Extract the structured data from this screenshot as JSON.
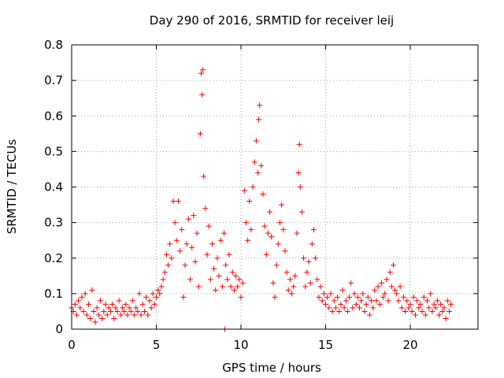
{
  "chart_data": {
    "type": "scatter",
    "title": "Day 290 of 2016, SRMTID for receiver leij",
    "xlabel": "GPS time / hours",
    "ylabel": "SRMTID / TECUs",
    "xlim": [
      0,
      24
    ],
    "ylim": [
      0,
      0.8
    ],
    "xticks": [
      0,
      5,
      10,
      15,
      20
    ],
    "xtick_labels": [
      "0",
      "5",
      "10",
      "15",
      "20"
    ],
    "yticks": [
      0,
      0.1,
      0.2,
      0.3,
      0.4,
      0.5,
      0.6,
      0.7,
      0.8
    ],
    "ytick_labels": [
      "0",
      "0.1",
      "0.2",
      "0.3",
      "0.4",
      "0.5",
      "0.6",
      "0.7",
      "0.8"
    ],
    "grid": true,
    "marker": "+",
    "color": "#ff0000",
    "series": [
      {
        "points": [
          [
            0.0,
            0.06
          ],
          [
            0.1,
            0.05
          ],
          [
            0.2,
            0.07
          ],
          [
            0.3,
            0.04
          ],
          [
            0.4,
            0.08
          ],
          [
            0.5,
            0.06
          ],
          [
            0.6,
            0.09
          ],
          [
            0.7,
            0.05
          ],
          [
            0.8,
            0.1
          ],
          [
            0.9,
            0.04
          ],
          [
            1.0,
            0.07
          ],
          [
            1.1,
            0.03
          ],
          [
            1.2,
            0.11
          ],
          [
            1.3,
            0.05
          ],
          [
            1.4,
            0.02
          ],
          [
            1.5,
            0.06
          ],
          [
            1.6,
            0.04
          ],
          [
            1.7,
            0.08
          ],
          [
            1.8,
            0.03
          ],
          [
            1.9,
            0.05
          ],
          [
            2.0,
            0.07
          ],
          [
            2.1,
            0.04
          ],
          [
            2.2,
            0.06
          ],
          [
            2.3,
            0.05
          ],
          [
            2.4,
            0.07
          ],
          [
            2.5,
            0.03
          ],
          [
            2.6,
            0.06
          ],
          [
            2.7,
            0.05
          ],
          [
            2.8,
            0.08
          ],
          [
            2.9,
            0.04
          ],
          [
            3.0,
            0.06
          ],
          [
            3.1,
            0.05
          ],
          [
            3.2,
            0.07
          ],
          [
            3.3,
            0.04
          ],
          [
            3.4,
            0.06
          ],
          [
            3.5,
            0.05
          ],
          [
            3.6,
            0.08
          ],
          [
            3.7,
            0.04
          ],
          [
            3.8,
            0.06
          ],
          [
            3.9,
            0.05
          ],
          [
            4.0,
            0.1
          ],
          [
            4.1,
            0.04
          ],
          [
            4.2,
            0.07
          ],
          [
            4.3,
            0.05
          ],
          [
            4.4,
            0.09
          ],
          [
            4.5,
            0.04
          ],
          [
            4.6,
            0.08
          ],
          [
            4.7,
            0.06
          ],
          [
            4.8,
            0.1
          ],
          [
            4.9,
            0.07
          ],
          [
            5.0,
            0.09
          ],
          [
            5.1,
            0.11
          ],
          [
            5.2,
            0.1
          ],
          [
            5.3,
            0.12
          ],
          [
            5.4,
            0.14
          ],
          [
            5.5,
            0.16
          ],
          [
            5.6,
            0.21
          ],
          [
            5.7,
            0.18
          ],
          [
            5.8,
            0.24
          ],
          [
            5.9,
            0.2
          ],
          [
            6.0,
            0.36
          ],
          [
            6.1,
            0.3
          ],
          [
            6.2,
            0.25
          ],
          [
            6.3,
            0.36
          ],
          [
            6.4,
            0.22
          ],
          [
            6.5,
            0.28
          ],
          [
            6.6,
            0.09
          ],
          [
            6.7,
            0.18
          ],
          [
            6.8,
            0.24
          ],
          [
            6.9,
            0.31
          ],
          [
            7.0,
            0.14
          ],
          [
            7.1,
            0.23
          ],
          [
            7.2,
            0.32
          ],
          [
            7.3,
            0.19
          ],
          [
            7.4,
            0.27
          ],
          [
            7.5,
            0.12
          ],
          [
            7.6,
            0.55
          ],
          [
            7.65,
            0.72
          ],
          [
            7.7,
            0.66
          ],
          [
            7.75,
            0.73
          ],
          [
            7.8,
            0.43
          ],
          [
            7.9,
            0.34
          ],
          [
            8.0,
            0.21
          ],
          [
            8.1,
            0.29
          ],
          [
            8.2,
            0.14
          ],
          [
            8.3,
            0.24
          ],
          [
            8.4,
            0.17
          ],
          [
            8.5,
            0.11
          ],
          [
            8.6,
            0.2
          ],
          [
            8.7,
            0.15
          ],
          [
            8.8,
            0.25
          ],
          [
            8.9,
            0.12
          ],
          [
            9.0,
            0.27
          ],
          [
            9.05,
            0.0
          ],
          [
            9.1,
            0.18
          ],
          [
            9.2,
            0.14
          ],
          [
            9.3,
            0.21
          ],
          [
            9.4,
            0.12
          ],
          [
            9.5,
            0.16
          ],
          [
            9.6,
            0.11
          ],
          [
            9.7,
            0.15
          ],
          [
            9.8,
            0.12
          ],
          [
            9.9,
            0.14
          ],
          [
            10.0,
            0.09
          ],
          [
            10.1,
            0.13
          ],
          [
            10.2,
            0.39
          ],
          [
            10.3,
            0.3
          ],
          [
            10.4,
            0.25
          ],
          [
            10.5,
            0.36
          ],
          [
            10.6,
            0.28
          ],
          [
            10.7,
            0.4
          ],
          [
            10.8,
            0.47
          ],
          [
            10.9,
            0.53
          ],
          [
            11.0,
            0.44
          ],
          [
            11.05,
            0.59
          ],
          [
            11.1,
            0.63
          ],
          [
            11.2,
            0.46
          ],
          [
            11.3,
            0.38
          ],
          [
            11.4,
            0.29
          ],
          [
            11.5,
            0.21
          ],
          [
            11.6,
            0.27
          ],
          [
            11.7,
            0.33
          ],
          [
            11.8,
            0.26
          ],
          [
            11.9,
            0.13
          ],
          [
            12.0,
            0.09
          ],
          [
            12.1,
            0.18
          ],
          [
            12.2,
            0.24
          ],
          [
            12.3,
            0.3
          ],
          [
            12.4,
            0.35
          ],
          [
            12.5,
            0.28
          ],
          [
            12.6,
            0.22
          ],
          [
            12.7,
            0.16
          ],
          [
            12.8,
            0.11
          ],
          [
            12.9,
            0.14
          ],
          [
            13.0,
            0.1
          ],
          [
            13.1,
            0.12
          ],
          [
            13.2,
            0.15
          ],
          [
            13.3,
            0.27
          ],
          [
            13.4,
            0.44
          ],
          [
            13.45,
            0.52
          ],
          [
            13.5,
            0.4
          ],
          [
            13.6,
            0.33
          ],
          [
            13.7,
            0.2
          ],
          [
            13.8,
            0.12
          ],
          [
            13.9,
            0.16
          ],
          [
            14.0,
            0.19
          ],
          [
            14.1,
            0.13
          ],
          [
            14.2,
            0.24
          ],
          [
            14.3,
            0.28
          ],
          [
            14.4,
            0.2
          ],
          [
            14.5,
            0.14
          ],
          [
            14.6,
            0.09
          ],
          [
            14.7,
            0.12
          ],
          [
            14.8,
            0.08
          ],
          [
            14.9,
            0.1
          ],
          [
            15.0,
            0.07
          ],
          [
            15.1,
            0.09
          ],
          [
            15.2,
            0.06
          ],
          [
            15.3,
            0.1
          ],
          [
            15.4,
            0.05
          ],
          [
            15.5,
            0.08
          ],
          [
            15.6,
            0.06
          ],
          [
            15.7,
            0.09
          ],
          [
            15.8,
            0.05
          ],
          [
            15.9,
            0.07
          ],
          [
            16.0,
            0.11
          ],
          [
            16.1,
            0.06
          ],
          [
            16.2,
            0.08
          ],
          [
            16.3,
            0.05
          ],
          [
            16.4,
            0.09
          ],
          [
            16.5,
            0.13
          ],
          [
            16.6,
            0.06
          ],
          [
            16.7,
            0.1
          ],
          [
            16.8,
            0.07
          ],
          [
            16.9,
            0.09
          ],
          [
            17.0,
            0.06
          ],
          [
            17.1,
            0.08
          ],
          [
            17.2,
            0.1
          ],
          [
            17.3,
            0.05
          ],
          [
            17.4,
            0.07
          ],
          [
            17.5,
            0.09
          ],
          [
            17.6,
            0.04
          ],
          [
            17.7,
            0.08
          ],
          [
            17.8,
            0.06
          ],
          [
            17.9,
            0.11
          ],
          [
            18.0,
            0.08
          ],
          [
            18.1,
            0.12
          ],
          [
            18.2,
            0.07
          ],
          [
            18.3,
            0.13
          ],
          [
            18.4,
            0.09
          ],
          [
            18.5,
            0.1
          ],
          [
            18.6,
            0.14
          ],
          [
            18.7,
            0.08
          ],
          [
            18.8,
            0.16
          ],
          [
            18.9,
            0.12
          ],
          [
            19.0,
            0.18
          ],
          [
            19.1,
            0.11
          ],
          [
            19.2,
            0.1
          ],
          [
            19.3,
            0.08
          ],
          [
            19.4,
            0.12
          ],
          [
            19.5,
            0.06
          ],
          [
            19.6,
            0.09
          ],
          [
            19.7,
            0.05
          ],
          [
            19.8,
            0.08
          ],
          [
            19.9,
            0.06
          ],
          [
            20.0,
            0.07
          ],
          [
            20.1,
            0.05
          ],
          [
            20.2,
            0.09
          ],
          [
            20.3,
            0.04
          ],
          [
            20.4,
            0.08
          ],
          [
            20.5,
            0.06
          ],
          [
            20.6,
            0.07
          ],
          [
            20.7,
            0.05
          ],
          [
            20.8,
            0.09
          ],
          [
            20.9,
            0.04
          ],
          [
            21.0,
            0.08
          ],
          [
            21.1,
            0.06
          ],
          [
            21.2,
            0.1
          ],
          [
            21.3,
            0.05
          ],
          [
            21.4,
            0.07
          ],
          [
            21.5,
            0.06
          ],
          [
            21.6,
            0.08
          ],
          [
            21.7,
            0.04
          ],
          [
            21.8,
            0.07
          ],
          [
            21.9,
            0.05
          ],
          [
            22.0,
            0.06
          ],
          [
            22.1,
            0.03
          ],
          [
            22.2,
            0.08
          ],
          [
            22.3,
            0.05
          ],
          [
            22.4,
            0.07
          ]
        ]
      }
    ]
  }
}
